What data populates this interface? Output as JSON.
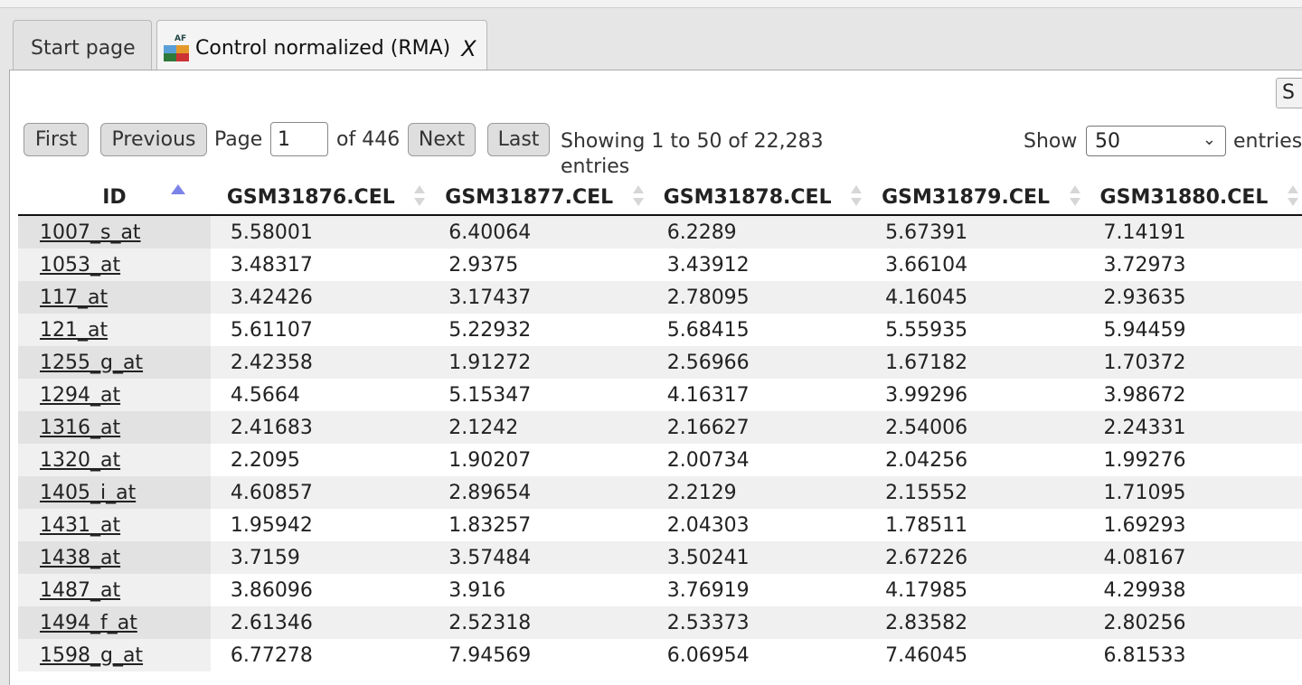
{
  "tabs": {
    "start_label": "Start page",
    "active_label": "Control normalized (RMA)",
    "close_glyph": "X",
    "active_icon": "affymetrix-dataset-icon"
  },
  "toolbar": {
    "save_label": "S"
  },
  "pager": {
    "first": "First",
    "previous": "Previous",
    "page_label": "Page",
    "page_value": "1",
    "of_label": "of 446",
    "next": "Next",
    "last": "Last",
    "showing_line1": "Showing 1 to 50 of 22,283",
    "showing_line2": "entries",
    "show_label": "Show",
    "show_value": "50",
    "entries_label": "entries"
  },
  "table": {
    "columns": [
      "ID",
      "GSM31876.CEL",
      "GSM31877.CEL",
      "GSM31878.CEL",
      "GSM31879.CEL",
      "GSM31880.CEL"
    ],
    "sort_column": "ID",
    "sort_direction": "ascending",
    "rows": [
      [
        "1007_s_at",
        "5.58001",
        "6.40064",
        "6.2289",
        "5.67391",
        "7.14191"
      ],
      [
        "1053_at",
        "3.48317",
        "2.9375",
        "3.43912",
        "3.66104",
        "3.72973"
      ],
      [
        "117_at",
        "3.42426",
        "3.17437",
        "2.78095",
        "4.16045",
        "2.93635"
      ],
      [
        "121_at",
        "5.61107",
        "5.22932",
        "5.68415",
        "5.55935",
        "5.94459"
      ],
      [
        "1255_g_at",
        "2.42358",
        "1.91272",
        "2.56966",
        "1.67182",
        "1.70372"
      ],
      [
        "1294_at",
        "4.5664",
        "5.15347",
        "4.16317",
        "3.99296",
        "3.98672"
      ],
      [
        "1316_at",
        "2.41683",
        "2.1242",
        "2.16627",
        "2.54006",
        "2.24331"
      ],
      [
        "1320_at",
        "2.2095",
        "1.90207",
        "2.00734",
        "2.04256",
        "1.99276"
      ],
      [
        "1405_i_at",
        "4.60857",
        "2.89654",
        "2.2129",
        "2.15552",
        "1.71095"
      ],
      [
        "1431_at",
        "1.95942",
        "1.83257",
        "2.04303",
        "1.78511",
        "1.69293"
      ],
      [
        "1438_at",
        "3.7159",
        "3.57484",
        "3.50241",
        "2.67226",
        "4.08167"
      ],
      [
        "1487_at",
        "3.86096",
        "3.916",
        "3.76919",
        "4.17985",
        "4.29938"
      ],
      [
        "1494_f_at",
        "2.61346",
        "2.52318",
        "2.53373",
        "2.83582",
        "2.80256"
      ],
      [
        "1598_g_at",
        "6.77278",
        "7.94569",
        "6.06954",
        "7.46045",
        "6.81533"
      ]
    ]
  }
}
